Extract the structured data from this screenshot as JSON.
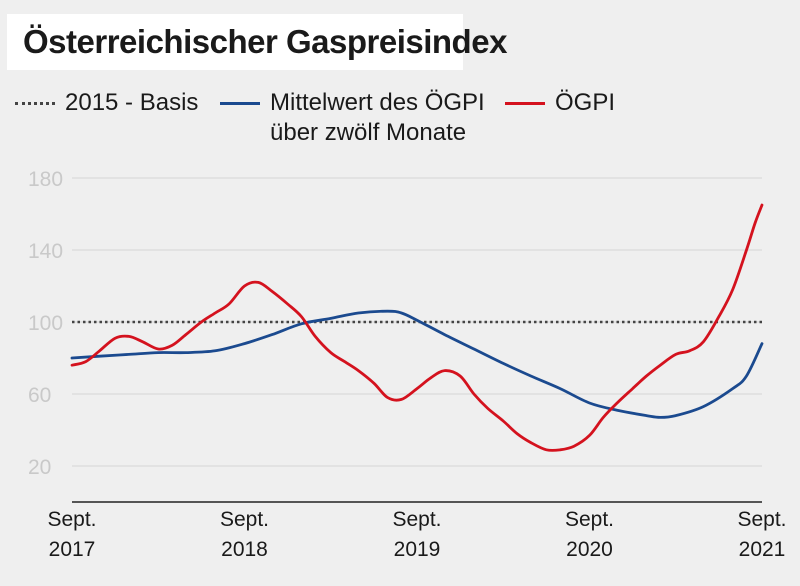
{
  "title": "Österreichischer Gaspreisindex",
  "legend": [
    {
      "label": "2015 - Basis",
      "style": "dotted",
      "color": "#444444"
    },
    {
      "label": "Mittelwert des ÖGPI\nüber zwölf Monate",
      "style": "solid",
      "color": "#1b4a8f"
    },
    {
      "label": "ÖGPI",
      "style": "solid",
      "color": "#d4121e"
    }
  ],
  "chart_data": {
    "type": "line",
    "title": "Österreichischer Gaspreisindex",
    "xlabel": "",
    "ylabel": "",
    "ylim": [
      0,
      190
    ],
    "xlim": [
      2017.67,
      2021.67
    ],
    "y_ticks": [
      20,
      60,
      100,
      140,
      180
    ],
    "x_ticks": [
      {
        "x": 2017.67,
        "label": "Sept.\n2017"
      },
      {
        "x": 2018.67,
        "label": "Sept.\n2018"
      },
      {
        "x": 2019.67,
        "label": "Sept.\n2019"
      },
      {
        "x": 2020.67,
        "label": "Sept.\n2020"
      },
      {
        "x": 2021.67,
        "label": "Sept.\n2021"
      }
    ],
    "grid": "horizontal",
    "reference_line": {
      "name": "2015 - Basis",
      "y": 100
    },
    "series": [
      {
        "name": "Mittelwert des ÖGPI über zwölf Monate",
        "color": "#1b4a8f",
        "points": [
          [
            2017.67,
            80
          ],
          [
            2017.83,
            81
          ],
          [
            2018.0,
            82
          ],
          [
            2018.17,
            83
          ],
          [
            2018.33,
            83
          ],
          [
            2018.5,
            84
          ],
          [
            2018.67,
            88
          ],
          [
            2018.83,
            93
          ],
          [
            2019.0,
            99
          ],
          [
            2019.17,
            102
          ],
          [
            2019.33,
            105
          ],
          [
            2019.5,
            106
          ],
          [
            2019.58,
            105
          ],
          [
            2019.67,
            101
          ],
          [
            2019.83,
            93
          ],
          [
            2020.0,
            85
          ],
          [
            2020.17,
            77
          ],
          [
            2020.33,
            70
          ],
          [
            2020.5,
            63
          ],
          [
            2020.67,
            55
          ],
          [
            2020.83,
            51
          ],
          [
            2021.0,
            48
          ],
          [
            2021.08,
            47
          ],
          [
            2021.17,
            48
          ],
          [
            2021.33,
            53
          ],
          [
            2021.5,
            63
          ],
          [
            2021.58,
            70
          ],
          [
            2021.67,
            88
          ]
        ]
      },
      {
        "name": "ÖGPI",
        "color": "#d4121e",
        "points": [
          [
            2017.67,
            76
          ],
          [
            2017.75,
            78
          ],
          [
            2017.83,
            84
          ],
          [
            2017.92,
            91
          ],
          [
            2018.0,
            92
          ],
          [
            2018.08,
            89
          ],
          [
            2018.17,
            85
          ],
          [
            2018.25,
            87
          ],
          [
            2018.33,
            93
          ],
          [
            2018.42,
            100
          ],
          [
            2018.5,
            105
          ],
          [
            2018.58,
            110
          ],
          [
            2018.67,
            120
          ],
          [
            2018.75,
            122
          ],
          [
            2018.83,
            117
          ],
          [
            2018.92,
            110
          ],
          [
            2019.0,
            103
          ],
          [
            2019.08,
            92
          ],
          [
            2019.17,
            83
          ],
          [
            2019.25,
            78
          ],
          [
            2019.33,
            73
          ],
          [
            2019.42,
            66
          ],
          [
            2019.5,
            58
          ],
          [
            2019.58,
            57
          ],
          [
            2019.67,
            63
          ],
          [
            2019.75,
            69
          ],
          [
            2019.83,
            73
          ],
          [
            2019.92,
            70
          ],
          [
            2020.0,
            60
          ],
          [
            2020.08,
            52
          ],
          [
            2020.17,
            45
          ],
          [
            2020.25,
            38
          ],
          [
            2020.33,
            33
          ],
          [
            2020.42,
            29
          ],
          [
            2020.5,
            29
          ],
          [
            2020.58,
            31
          ],
          [
            2020.67,
            37
          ],
          [
            2020.75,
            47
          ],
          [
            2020.83,
            55
          ],
          [
            2020.92,
            63
          ],
          [
            2021.0,
            70
          ],
          [
            2021.08,
            76
          ],
          [
            2021.17,
            82
          ],
          [
            2021.25,
            84
          ],
          [
            2021.33,
            89
          ],
          [
            2021.42,
            103
          ],
          [
            2021.5,
            118
          ],
          [
            2021.58,
            140
          ],
          [
            2021.63,
            155
          ],
          [
            2021.67,
            165
          ]
        ]
      }
    ]
  }
}
